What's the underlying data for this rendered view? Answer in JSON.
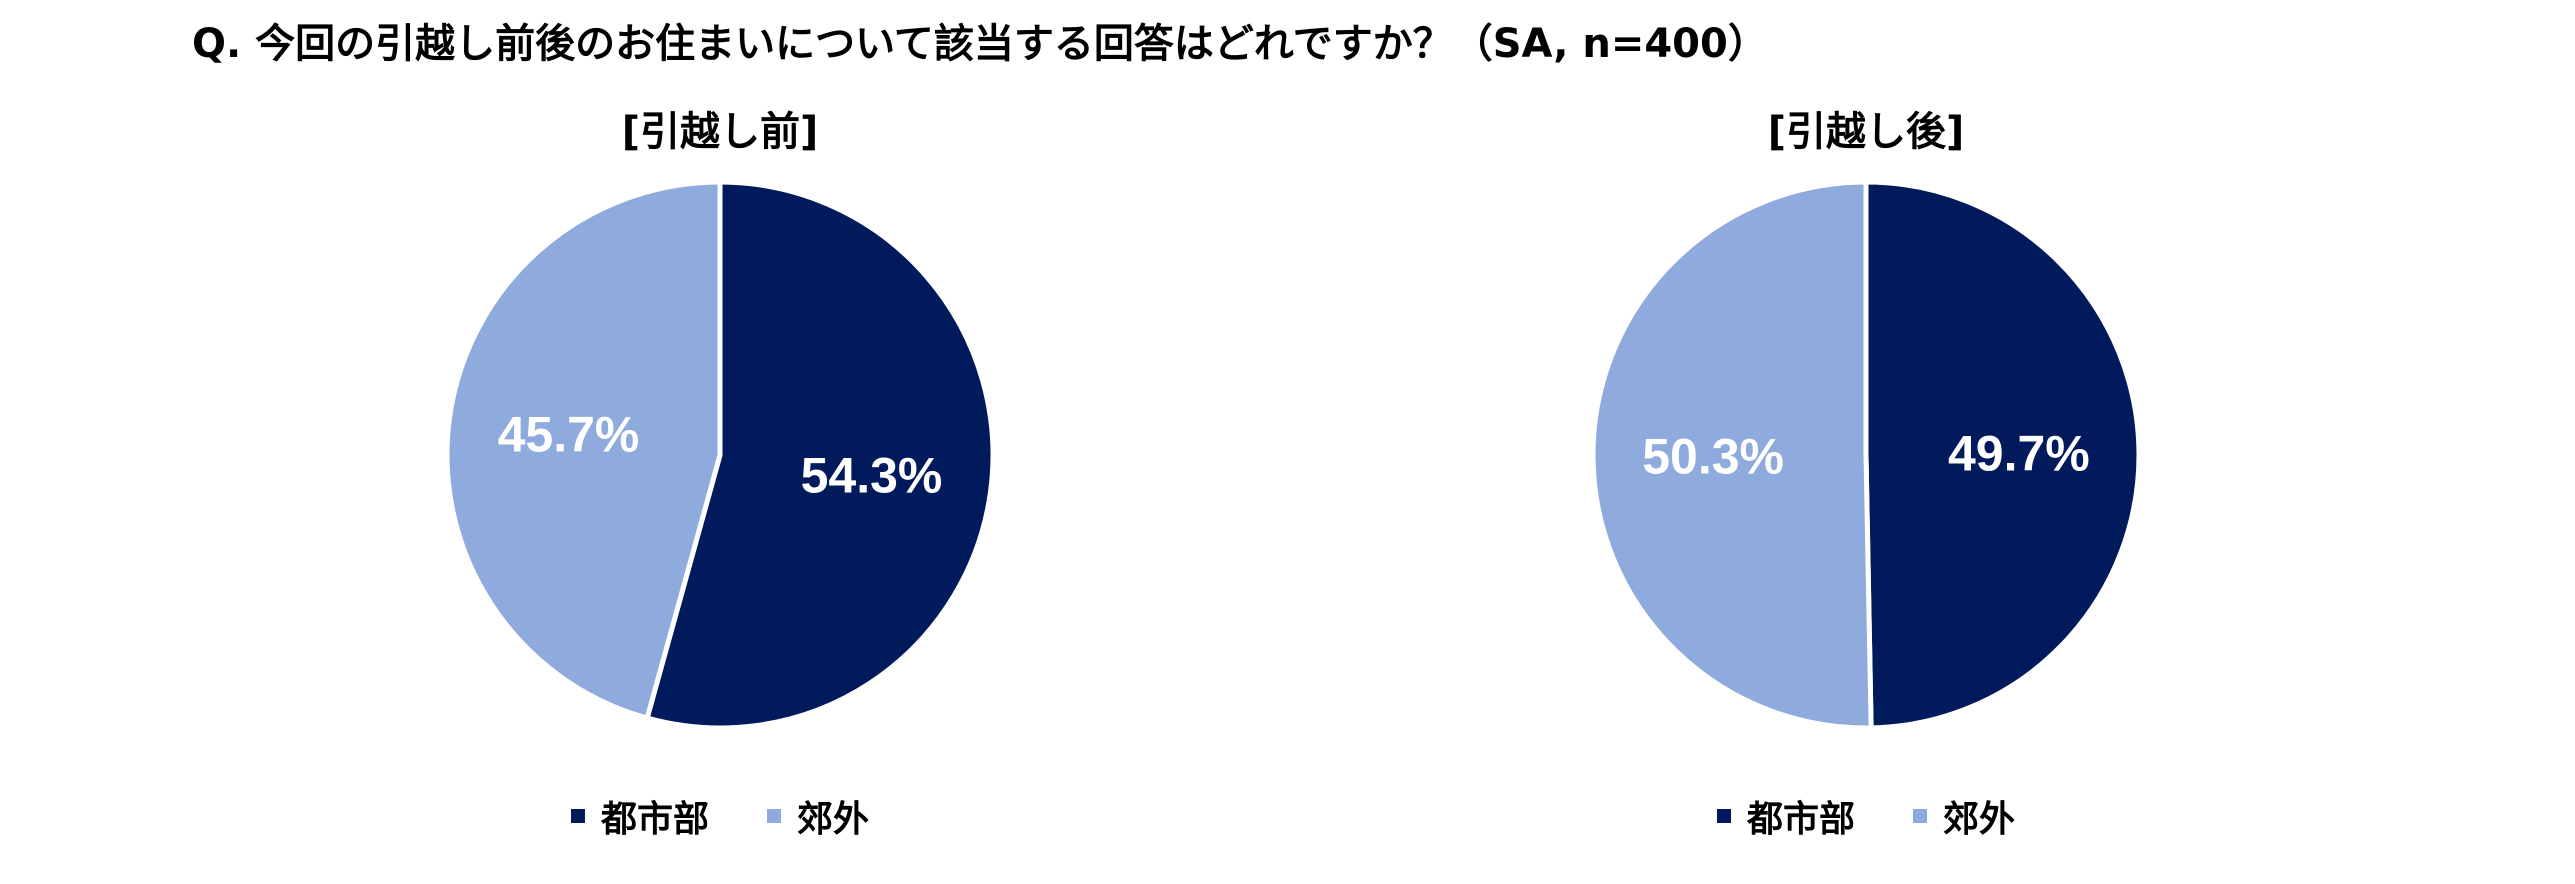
{
  "question": "Q. 今回の引越し前後のお住まいについて該当する回答はどれですか？（SA, n=400）",
  "colors": {
    "series_1": "#001a5c",
    "series_2": "#8faadc",
    "label_text": "#ffffff",
    "divider": "#ffffff"
  },
  "chart_data": [
    {
      "type": "pie",
      "title": "[引越し前]",
      "categories": [
        "都市部",
        "郊外"
      ],
      "values": [
        54.3,
        45.7
      ],
      "labels": [
        "54.3%",
        "45.7%"
      ],
      "start_angle": "12 o'clock",
      "direction": "clockwise",
      "legend": "bottom"
    },
    {
      "type": "pie",
      "title": "[引越し後]",
      "categories": [
        "都市部",
        "郊外"
      ],
      "values": [
        49.7,
        50.3
      ],
      "labels": [
        "49.7%",
        "50.3%"
      ],
      "start_angle": "12 o'clock",
      "direction": "clockwise",
      "legend": "bottom"
    }
  ]
}
